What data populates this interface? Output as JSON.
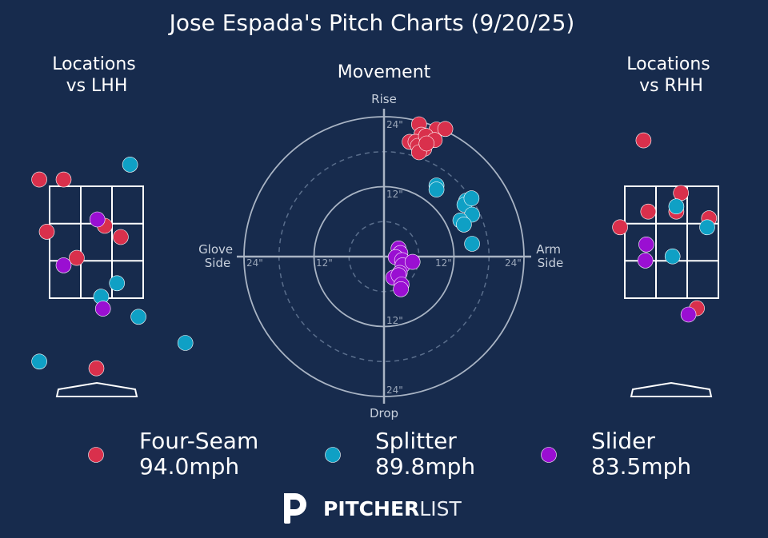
{
  "title": "Jose Espada's Pitch Charts (9/20/25)",
  "colors": {
    "background": "#172b4d",
    "four_seam": "#d9304c",
    "splitter": "#0fa0c5",
    "slider": "#9a0fd2"
  },
  "chart_data": [
    {
      "type": "scatter",
      "title": "Locations\nvs LHH",
      "title_lines": [
        "Locations",
        "vs LHH"
      ],
      "x_unit": "zone widths from left edge",
      "y_unit": "zone thirds from top edge",
      "series": [
        {
          "name": "Four-Seam",
          "points": [
            [
              -0.11,
              -0.18
            ],
            [
              0.15,
              -0.18
            ],
            [
              0.59,
              1.06
            ],
            [
              0.76,
              1.36
            ],
            [
              -0.03,
              1.22
            ],
            [
              0.29,
              1.92
            ],
            [
              0.5,
              4.88
            ]
          ]
        },
        {
          "name": "Splitter",
          "points": [
            [
              0.86,
              -0.58
            ],
            [
              0.72,
              2.6
            ],
            [
              0.55,
              2.96
            ],
            [
              0.95,
              3.5
            ],
            [
              1.45,
              4.2
            ],
            [
              -0.11,
              4.7
            ]
          ]
        },
        {
          "name": "Slider",
          "points": [
            [
              0.51,
              0.89
            ],
            [
              0.15,
              2.12
            ],
            [
              0.57,
              3.28
            ]
          ]
        }
      ]
    },
    {
      "type": "scatter",
      "title": "Movement",
      "x_unit": "inches",
      "y_unit": "inches",
      "axis_words": {
        "top": "Rise",
        "bottom": "Drop",
        "left": "Glove\nSide",
        "right": "Arm\nSide"
      },
      "left_lines": [
        "Glove",
        "Side"
      ],
      "right_lines": [
        "Arm",
        "Side"
      ],
      "tick_labels": {
        "r12": "12\"",
        "r24": "24\""
      },
      "rings": [
        6,
        12,
        18,
        24
      ],
      "series": [
        {
          "name": "Four-Seam",
          "points": [
            [
              6.0,
              22.7
            ],
            [
              9.0,
              21.8
            ],
            [
              6.4,
              20.9
            ],
            [
              4.4,
              19.7
            ],
            [
              5.4,
              19.7
            ],
            [
              6.9,
              18.5
            ],
            [
              5.8,
              19.0
            ],
            [
              7.2,
              20.7
            ],
            [
              8.7,
              20.0
            ],
            [
              10.5,
              21.9
            ],
            [
              6.0,
              17.9
            ],
            [
              7.3,
              19.4
            ]
          ]
        },
        {
          "name": "Splitter",
          "points": [
            [
              9.0,
              12.2
            ],
            [
              9.0,
              11.5
            ],
            [
              14.1,
              9.6
            ],
            [
              13.8,
              8.9
            ],
            [
              15.1,
              7.2
            ],
            [
              15.0,
              10.0
            ],
            [
              13.1,
              6.2
            ],
            [
              13.7,
              5.5
            ],
            [
              15.1,
              2.2
            ]
          ]
        },
        {
          "name": "Slider",
          "points": [
            [
              2.5,
              1.4
            ],
            [
              2.8,
              0.6
            ],
            [
              2.0,
              -0.1
            ],
            [
              3.1,
              -0.6
            ],
            [
              3.2,
              -1.5
            ],
            [
              4.9,
              -0.9
            ],
            [
              2.7,
              -2.8
            ],
            [
              1.6,
              -3.6
            ],
            [
              2.5,
              -3.2
            ],
            [
              3.0,
              -4.8
            ],
            [
              2.9,
              -5.6
            ]
          ]
        }
      ]
    },
    {
      "type": "scatter",
      "title": "Locations\nvs RHH",
      "title_lines": [
        "Locations",
        "vs RHH"
      ],
      "x_unit": "zone widths from left edge",
      "y_unit": "zone thirds from top edge",
      "series": [
        {
          "name": "Four-Seam",
          "points": [
            [
              0.2,
              -1.23
            ],
            [
              0.6,
              0.18
            ],
            [
              0.25,
              0.68
            ],
            [
              0.55,
              0.68
            ],
            [
              0.9,
              0.86
            ],
            [
              -0.05,
              1.1
            ],
            [
              0.77,
              3.27
            ]
          ]
        },
        {
          "name": "Splitter",
          "points": [
            [
              0.55,
              0.54
            ],
            [
              0.88,
              1.1
            ],
            [
              0.51,
              1.88
            ]
          ]
        },
        {
          "name": "Slider",
          "points": [
            [
              0.23,
              1.56
            ],
            [
              0.22,
              1.99
            ],
            [
              0.68,
              3.44
            ]
          ]
        }
      ]
    }
  ],
  "legend": [
    {
      "name": "Four-Seam",
      "speed": "94.0mph",
      "color_key": "four_seam"
    },
    {
      "name": "Splitter",
      "speed": "89.8mph",
      "color_key": "splitter"
    },
    {
      "name": "Slider",
      "speed": "83.5mph",
      "color_key": "slider"
    }
  ],
  "brand": {
    "bold": "PITCHER",
    "light": "LIST"
  }
}
